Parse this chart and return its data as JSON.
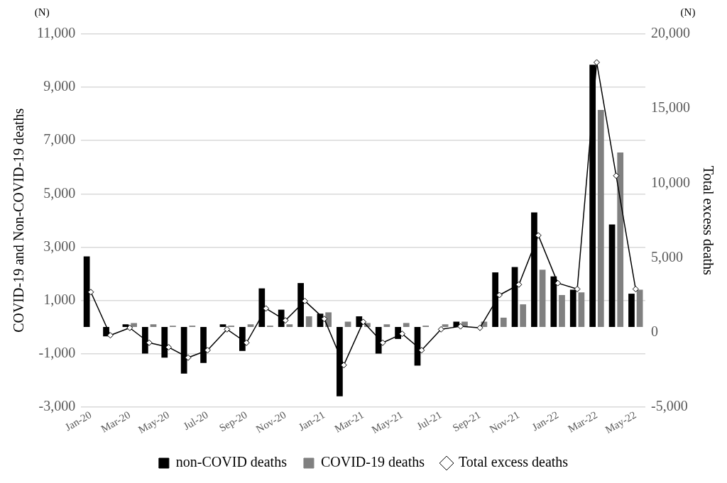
{
  "chart_data": {
    "type": "bar",
    "categories": [
      "Jan-20",
      null,
      "Mar-20",
      null,
      "May-20",
      null,
      "Jul-20",
      null,
      "Sep-20",
      null,
      "Nov-20",
      null,
      "Jan-21",
      null,
      "Mar-21",
      null,
      "May-21",
      null,
      "Jul-21",
      null,
      "Sep-21",
      null,
      "Nov-21",
      null,
      "Jan-22",
      null,
      "Mar-22",
      null,
      "May-22"
    ],
    "series": [
      {
        "name": "non-COVID deaths",
        "color": "#000000",
        "values": [
          2650,
          -350,
          100,
          -1000,
          -1150,
          -1750,
          -1350,
          100,
          -900,
          1450,
          650,
          1650,
          500,
          -2600,
          400,
          -1000,
          -450,
          -1450,
          0,
          200,
          0,
          2050,
          2250,
          4300,
          1900,
          1400,
          9850,
          3850,
          1250
        ]
      },
      {
        "name": "COVID-19 deaths",
        "color": "#808080",
        "values": [
          0,
          0,
          150,
          100,
          50,
          50,
          0,
          50,
          100,
          50,
          100,
          400,
          550,
          200,
          150,
          100,
          150,
          50,
          100,
          200,
          200,
          350,
          850,
          2150,
          1200,
          1300,
          8150,
          6550,
          1400
        ]
      },
      {
        "name": "Total excess deaths",
        "type": "line",
        "axis": "y2",
        "color": "#000000",
        "marker": "diamond",
        "values": [
          2700,
          -200,
          300,
          -700,
          -1000,
          -1700,
          -1200,
          200,
          -700,
          1600,
          800,
          2100,
          900,
          -2200,
          700,
          -700,
          -100,
          -1200,
          200,
          400,
          300,
          2500,
          3200,
          6500,
          3300,
          2900,
          18100,
          10500,
          2900
        ]
      }
    ],
    "ylabel": "COVID-19 and Non-COVID-19 deaths",
    "y2label": "Total excess deaths",
    "ylim": [
      -3000,
      11000
    ],
    "yticks": [
      {
        "value": -3000,
        "label": "-3,000"
      },
      {
        "value": -1000,
        "label": "-1,000"
      },
      {
        "value": 1000,
        "label": "1,000"
      },
      {
        "value": 3000,
        "label": "3,000"
      },
      {
        "value": 5000,
        "label": "5,000"
      },
      {
        "value": 7000,
        "label": "7,000"
      },
      {
        "value": 9000,
        "label": "9,000"
      },
      {
        "value": 11000,
        "label": "11,000"
      }
    ],
    "y2lim": [
      -5000,
      20000
    ],
    "y2ticks": [
      {
        "value": -5000,
        "label": "-5,000"
      },
      0,
      {
        "value": 5000,
        "label": "5,000"
      },
      {
        "value": 10000,
        "label": "10,000"
      },
      {
        "value": 15000,
        "label": "15,000"
      },
      {
        "value": 20000,
        "label": "20,000"
      }
    ],
    "grid": "y",
    "legend": "bottom",
    "annotations": [
      "(N)",
      "(N)"
    ]
  }
}
